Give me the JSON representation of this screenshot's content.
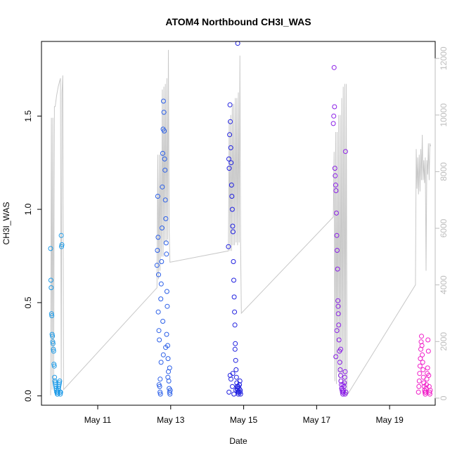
{
  "chart_data": {
    "type": "scatter",
    "title": "ATOM4 Northbound CH3I_WAS",
    "xlabel": "Date",
    "ylabel": "CH3I_WAS",
    "y2label": "",
    "x_unit": "day",
    "x_ticks": [
      {
        "label": "May 11",
        "value": "2018-05-11"
      },
      {
        "label": "May 13",
        "value": "2018-05-13"
      },
      {
        "label": "May 15",
        "value": "2018-05-15"
      },
      {
        "label": "May 17",
        "value": "2018-05-17"
      },
      {
        "label": "May 19",
        "value": "2018-05-19"
      }
    ],
    "xlim": [
      "2018-05-09 11:00",
      "2018-05-20 06:00"
    ],
    "ylim": [
      -0.05,
      1.9
    ],
    "y2lim": [
      -250,
      12600
    ],
    "y_ticks": [
      "0.0",
      "0.5",
      "1.0",
      "1.5"
    ],
    "y_tick_values": [
      0,
      0.5,
      1.0,
      1.5
    ],
    "y2_ticks": [
      "0",
      "2000",
      "4000",
      "6000",
      "8000",
      "10000",
      "12000"
    ],
    "y2_tick_values": [
      0,
      2000,
      4000,
      6000,
      8000,
      10000,
      12000
    ],
    "grid": false,
    "legend": "none",
    "colors": {
      "axis": "#000000",
      "altitude": "#c8c8c8",
      "y2_tick_text": "#bdbdbd"
    },
    "series": [
      {
        "color": "#1e9be8",
        "x": [
          "2018-05-09 17:00",
          "2018-05-09 17:12",
          "2018-05-09 17:24",
          "2018-05-09 17:36",
          "2018-05-09 17:48",
          "2018-05-09 18:00",
          "2018-05-09 18:12",
          "2018-05-09 18:24",
          "2018-05-09 18:36",
          "2018-05-09 18:48",
          "2018-05-09 19:00",
          "2018-05-09 19:12",
          "2018-05-09 19:24",
          "2018-05-09 19:36",
          "2018-05-09 19:48",
          "2018-05-09 20:00",
          "2018-05-09 20:12",
          "2018-05-09 20:24",
          "2018-05-09 20:36",
          "2018-05-09 20:48",
          "2018-05-09 21:00",
          "2018-05-09 21:12",
          "2018-05-09 21:24",
          "2018-05-09 21:36",
          "2018-05-09 21:48",
          "2018-05-09 22:00",
          "2018-05-09 22:12",
          "2018-05-09 22:24",
          "2018-05-09 22:36",
          "2018-05-09 22:48",
          "2018-05-09 23:00",
          "2018-05-09 23:12",
          "2018-05-09 23:24",
          "2018-05-09 23:36",
          "2018-05-10 00:00",
          "2018-05-10 00:12",
          "2018-05-10 00:24"
        ],
        "y": [
          0.79,
          0.62,
          0.58,
          0.44,
          0.43,
          0.33,
          0.32,
          0.29,
          0.28,
          0.25,
          0.24,
          0.17,
          0.16,
          0.1,
          0.08,
          0.07,
          0.06,
          0.05,
          0.04,
          0.03,
          0.02,
          0.02,
          0.01,
          0.01,
          0.02,
          0.03,
          0.04,
          0.05,
          0.06,
          0.07,
          0.08,
          0.02,
          0.01,
          0.02,
          0.86,
          0.8,
          0.81
        ]
      },
      {
        "color": "#2b5fe8",
        "x": [
          "2018-05-12 15:00",
          "2018-05-12 15:15",
          "2018-05-12 15:30",
          "2018-05-12 15:45",
          "2018-05-12 16:00",
          "2018-05-12 16:15",
          "2018-05-12 16:30",
          "2018-05-12 16:45",
          "2018-05-12 17:00",
          "2018-05-12 17:15",
          "2018-05-12 17:30",
          "2018-05-12 17:45",
          "2018-05-12 18:00",
          "2018-05-12 18:15",
          "2018-05-12 18:30",
          "2018-05-12 18:45",
          "2018-05-12 19:00",
          "2018-05-12 19:15",
          "2018-05-12 19:30",
          "2018-05-12 19:45",
          "2018-05-12 20:00",
          "2018-05-12 20:15",
          "2018-05-12 20:30",
          "2018-05-12 20:45",
          "2018-05-12 21:00",
          "2018-05-12 21:15",
          "2018-05-12 21:30",
          "2018-05-12 21:45",
          "2018-05-12 22:00",
          "2018-05-12 22:15",
          "2018-05-12 22:30",
          "2018-05-12 22:45",
          "2018-05-12 23:00",
          "2018-05-12 23:15",
          "2018-05-12 23:30",
          "2018-05-12 23:45",
          "2018-05-12 16:20",
          "2018-05-12 17:40",
          "2018-05-12 19:10",
          "2018-05-12 20:40",
          "2018-05-12 22:10",
          "2018-05-12 15:50",
          "2018-05-12 18:50",
          "2018-05-12 21:20",
          "2018-05-12 23:20",
          "2018-05-12 17:05"
        ],
        "y": [
          0.7,
          0.78,
          1.07,
          0.85,
          0.65,
          0.35,
          0.3,
          0.05,
          0.02,
          0.01,
          0.52,
          0.6,
          0.72,
          0.9,
          1.12,
          1.3,
          1.43,
          1.58,
          1.52,
          1.42,
          1.27,
          1.21,
          1.05,
          0.95,
          0.82,
          0.76,
          0.56,
          0.48,
          0.27,
          0.2,
          0.13,
          0.08,
          0.04,
          0.02,
          0.01,
          0.03,
          0.06,
          0.18,
          0.22,
          0.26,
          0.1,
          0.45,
          0.4,
          0.33,
          0.15,
          0.09
        ]
      },
      {
        "color": "#1f1fe0",
        "x": [
          "2018-05-14 14:00",
          "2018-05-14 14:15",
          "2018-05-14 14:30",
          "2018-05-14 14:45",
          "2018-05-14 15:00",
          "2018-05-14 15:15",
          "2018-05-14 15:30",
          "2018-05-14 15:45",
          "2018-05-14 16:00",
          "2018-05-14 16:15",
          "2018-05-14 16:30",
          "2018-05-14 16:45",
          "2018-05-14 17:00",
          "2018-05-14 17:15",
          "2018-05-14 17:30",
          "2018-05-14 17:45",
          "2018-05-14 18:00",
          "2018-05-14 18:15",
          "2018-05-14 18:30",
          "2018-05-14 18:45",
          "2018-05-14 19:00",
          "2018-05-14 19:15",
          "2018-05-14 19:30",
          "2018-05-14 19:45",
          "2018-05-14 20:00",
          "2018-05-14 20:15",
          "2018-05-14 20:30",
          "2018-05-14 20:45",
          "2018-05-14 21:00",
          "2018-05-14 21:15",
          "2018-05-14 21:30",
          "2018-05-14 21:45",
          "2018-05-14 22:00",
          "2018-05-14 14:20",
          "2018-05-14 15:40",
          "2018-05-14 16:50",
          "2018-05-14 18:20",
          "2018-05-14 19:50",
          "2018-05-14 21:10",
          "2018-05-14 17:35",
          "2018-05-14 20:25",
          "2018-05-14 15:05",
          "2018-05-14 16:35",
          "2018-05-14 18:55",
          "2018-05-14 21:40",
          "2018-05-14 20:05"
        ],
        "y": [
          0.8,
          1.27,
          1.22,
          1.4,
          1.56,
          1.47,
          1.33,
          1.25,
          1.13,
          1.07,
          1.0,
          0.91,
          0.88,
          0.72,
          0.62,
          0.53,
          0.45,
          0.38,
          0.28,
          0.19,
          0.14,
          0.1,
          0.07,
          0.05,
          0.03,
          0.02,
          0.01,
          0.02,
          0.04,
          0.06,
          0.08,
          0.03,
          0.01,
          0.02,
          0.09,
          0.12,
          0.25,
          0.04,
          0.06,
          0.01,
          0.05,
          0.11,
          0.05,
          0.03,
          0.02,
          1.89
        ]
      },
      {
        "color": "#8a1ee6",
        "x": [
          "2018-05-17 11:00",
          "2018-05-17 11:15",
          "2018-05-17 11:30",
          "2018-05-17 11:45",
          "2018-05-17 12:00",
          "2018-05-17 12:15",
          "2018-05-17 12:30",
          "2018-05-17 12:45",
          "2018-05-17 13:00",
          "2018-05-17 13:15",
          "2018-05-17 13:30",
          "2018-05-17 13:45",
          "2018-05-17 14:00",
          "2018-05-17 14:15",
          "2018-05-17 14:30",
          "2018-05-17 14:45",
          "2018-05-17 15:00",
          "2018-05-17 15:15",
          "2018-05-17 15:30",
          "2018-05-17 15:45",
          "2018-05-17 16:00",
          "2018-05-17 16:15",
          "2018-05-17 16:30",
          "2018-05-17 16:45",
          "2018-05-17 17:00",
          "2018-05-17 17:15",
          "2018-05-17 17:30",
          "2018-05-17 17:45",
          "2018-05-17 18:00",
          "2018-05-17 18:15",
          "2018-05-17 18:30",
          "2018-05-17 18:45",
          "2018-05-17 19:00",
          "2018-05-17 19:15",
          "2018-05-17 12:40",
          "2018-05-17 14:10",
          "2018-05-17 15:50",
          "2018-05-17 17:20",
          "2018-05-17 18:40",
          "2018-05-17 13:20",
          "2018-05-17 16:40"
        ],
        "y": [
          1.46,
          1.5,
          1.76,
          1.55,
          1.22,
          1.18,
          1.13,
          1.1,
          0.98,
          0.86,
          0.78,
          0.68,
          0.51,
          0.44,
          0.38,
          0.3,
          0.24,
          0.18,
          0.14,
          0.11,
          0.08,
          0.06,
          0.04,
          0.03,
          0.02,
          0.01,
          0.02,
          0.03,
          0.05,
          0.07,
          0.1,
          0.13,
          1.31,
          0.02,
          0.21,
          0.48,
          0.25,
          0.06,
          0.01,
          0.35,
          0.04
        ]
      },
      {
        "color": "#f01ec8",
        "x": [
          "2018-05-19 19:00",
          "2018-05-19 19:15",
          "2018-05-19 19:30",
          "2018-05-19 19:45",
          "2018-05-19 20:00",
          "2018-05-19 20:15",
          "2018-05-19 20:30",
          "2018-05-19 20:45",
          "2018-05-19 21:00",
          "2018-05-19 21:15",
          "2018-05-19 21:30",
          "2018-05-19 21:45",
          "2018-05-19 22:00",
          "2018-05-19 22:15",
          "2018-05-19 22:30",
          "2018-05-19 22:45",
          "2018-05-19 23:00",
          "2018-05-19 23:15",
          "2018-05-19 23:30",
          "2018-05-19 23:45",
          "2018-05-20 00:00",
          "2018-05-20 00:15",
          "2018-05-20 00:30",
          "2018-05-20 00:45",
          "2018-05-20 01:00",
          "2018-05-20 01:15",
          "2018-05-20 01:30",
          "2018-05-20 01:45",
          "2018-05-20 02:00",
          "2018-05-20 02:15",
          "2018-05-20 02:30",
          "2018-05-20 02:45"
        ],
        "y": [
          0.02,
          0.05,
          0.08,
          0.12,
          0.16,
          0.2,
          0.25,
          0.29,
          0.32,
          0.27,
          0.22,
          0.18,
          0.14,
          0.1,
          0.07,
          0.05,
          0.03,
          0.02,
          0.01,
          0.02,
          0.04,
          0.06,
          0.09,
          0.12,
          0.15,
          0.3,
          0.24,
          0.11,
          0.05,
          0.02,
          0.01,
          0.03
        ]
      }
    ],
    "altitude": {
      "color": "#c8c8c8",
      "x": [
        "2018-05-09 17:00",
        "2018-05-09 17:30",
        "2018-05-09 18:00",
        "2018-05-09 18:30",
        "2018-05-09 19:00",
        "2018-05-09 19:30",
        "2018-05-09 20:00",
        "2018-05-09 21:00",
        "2018-05-09 22:00",
        "2018-05-09 23:00",
        "2018-05-09 23:30",
        "2018-05-10 00:00",
        "2018-05-10 00:30",
        "2018-05-10 01:00",
        "2018-05-10 01:30",
        "2018-05-12 15:00",
        "2018-05-12 15:30",
        "2018-05-12 16:00",
        "2018-05-12 16:30",
        "2018-05-12 17:00",
        "2018-05-12 17:30",
        "2018-05-12 18:00",
        "2018-05-12 18:30",
        "2018-05-12 19:00",
        "2018-05-12 19:30",
        "2018-05-12 20:00",
        "2018-05-12 20:30",
        "2018-05-12 21:00",
        "2018-05-12 21:30",
        "2018-05-12 22:00",
        "2018-05-12 22:30",
        "2018-05-12 23:00",
        "2018-05-12 23:30",
        "2018-05-14 14:00",
        "2018-05-14 14:30",
        "2018-05-14 15:00",
        "2018-05-14 15:30",
        "2018-05-14 16:00",
        "2018-05-14 16:30",
        "2018-05-14 17:00",
        "2018-05-14 17:30",
        "2018-05-14 18:00",
        "2018-05-14 18:30",
        "2018-05-14 19:00",
        "2018-05-14 19:30",
        "2018-05-14 20:00",
        "2018-05-14 20:30",
        "2018-05-14 21:00",
        "2018-05-14 21:30",
        "2018-05-14 22:00",
        "2018-05-14 22:30",
        "2018-05-17 11:00",
        "2018-05-17 11:30",
        "2018-05-17 12:00",
        "2018-05-17 12:30",
        "2018-05-17 13:00",
        "2018-05-17 13:30",
        "2018-05-17 14:00",
        "2018-05-17 14:30",
        "2018-05-17 15:00",
        "2018-05-17 15:30",
        "2018-05-17 16:00",
        "2018-05-17 16:30",
        "2018-05-17 17:00",
        "2018-05-17 17:30",
        "2018-05-17 18:00",
        "2018-05-17 18:30",
        "2018-05-17 19:00",
        "2018-05-17 19:30",
        "2018-05-17 20:00",
        "2018-05-19 17:00",
        "2018-05-19 17:30",
        "2018-05-19 18:00",
        "2018-05-19 18:30",
        "2018-05-19 19:00",
        "2018-05-19 19:30",
        "2018-05-19 20:00",
        "2018-05-19 20:30",
        "2018-05-19 21:00",
        "2018-05-19 21:30",
        "2018-05-19 22:00",
        "2018-05-19 22:30",
        "2018-05-19 23:00",
        "2018-05-19 23:30",
        "2018-05-20 00:00",
        "2018-05-20 00:30",
        "2018-05-20 01:00",
        "2018-05-20 01:30",
        "2018-05-20 02:00",
        "2018-05-20 02:30",
        "2018-05-20 03:00"
      ],
      "y": [
        100,
        9900,
        300,
        9900,
        500,
        10300,
        10300,
        10700,
        11000,
        11200,
        11300,
        500,
        10800,
        11400,
        300,
        3900,
        8600,
        4200,
        8600,
        4500,
        8600,
        5000,
        10900,
        5000,
        11000,
        5500,
        11100,
        5500,
        11300,
        5600,
        12300,
        6000,
        4800,
        5200,
        9800,
        5200,
        10000,
        5200,
        10400,
        5400,
        10400,
        5400,
        10600,
        5500,
        10600,
        5400,
        10800,
        5500,
        12100,
        5400,
        3000,
        6400,
        8700,
        600,
        9400,
        500,
        9400,
        900,
        10000,
        600,
        10000,
        800,
        10600,
        600,
        11000,
        500,
        11100,
        100,
        11100,
        100,
        4000,
        8800,
        7400,
        8500,
        7200,
        8600,
        7300,
        8800,
        7700,
        9300,
        7700,
        8400,
        7600,
        8500,
        4500,
        8400,
        7900,
        9000,
        7700,
        9000,
        8900
      ]
    }
  }
}
